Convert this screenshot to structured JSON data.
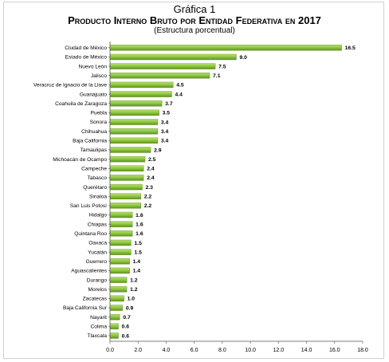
{
  "chart_data": {
    "type": "bar",
    "orientation": "horizontal",
    "title_lines": [
      "Gráfica 1",
      "Producto Interno Bruto por Entidad Federativa en 2017",
      "(Estructura porcentual)"
    ],
    "categories": [
      "Ciudad de México",
      "Estado de México",
      "Nuevo León",
      "Jalisco",
      "Veracruz de Ignacio de la Llave",
      "Guanajuato",
      "Coahuila de Zaragoza",
      "Puebla",
      "Sonora",
      "Chihuahua",
      "Baja California",
      "Tamaulipas",
      "Michoacán de Ocampo",
      "Campeche",
      "Tabasco",
      "Querétaro",
      "Sinaloa",
      "San Luis Potosí",
      "Hidalgo",
      "Chiapas",
      "Quintana Roo",
      "Oaxaca",
      "Yucatán",
      "Guerrero",
      "Aguascalientes",
      "Durango",
      "Morelos",
      "Zacatecas",
      "Baja California Sur",
      "Nayarit",
      "Colima",
      "Tlaxcala"
    ],
    "values": [
      16.5,
      9.0,
      7.5,
      7.1,
      4.5,
      4.4,
      3.7,
      3.5,
      3.4,
      3.4,
      3.4,
      2.9,
      2.5,
      2.4,
      2.4,
      2.3,
      2.2,
      2.2,
      1.6,
      1.6,
      1.6,
      1.5,
      1.5,
      1.4,
      1.4,
      1.2,
      1.2,
      1.0,
      0.9,
      0.7,
      0.6,
      0.6
    ],
    "value_labels": [
      "16.5",
      "9.0",
      "7.5",
      "7.1",
      "4.5",
      "4.4",
      "3.7",
      "3.5",
      "3.4",
      "3.4",
      "3.4",
      "2.9",
      "2.5",
      "2.4",
      "2.4",
      "2.3",
      "2.2",
      "2.2",
      "1.6",
      "1.6",
      "1.6",
      "1.5",
      "1.5",
      "1.4",
      "1.4",
      "1.2",
      "1.2",
      "1.0",
      "0.9",
      "0.7",
      "0.6",
      "0.6"
    ],
    "xlim": [
      0,
      18
    ],
    "x_ticks": [
      "0.0",
      "2.0",
      "4.0",
      "6.0",
      "8.0",
      "10.0",
      "12.0",
      "14.0",
      "16.0",
      "18.0"
    ],
    "grid": false,
    "legend": "none",
    "bar_color": "#8cc63e",
    "bar_dark": "#5e8f21"
  }
}
